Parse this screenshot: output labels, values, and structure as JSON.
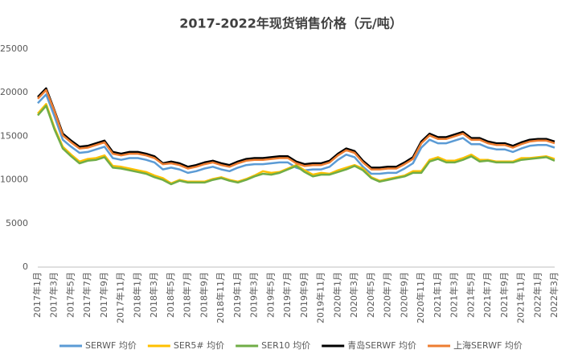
{
  "chart_data": {
    "type": "line",
    "title": "2017-2022年现货销售价格（元/吨）",
    "categories": [
      "2017年1月",
      null,
      "2017年3月",
      null,
      "2017年5月",
      null,
      "2017年7月",
      null,
      "2017年9月",
      null,
      "2017年11月",
      null,
      "2018年1月",
      null,
      "2018年3月",
      null,
      "2018年5月",
      null,
      "2018年7月",
      null,
      "2018年9月",
      null,
      "2018年11月",
      null,
      "2019年1月",
      null,
      "2019年3月",
      null,
      "2019年5月",
      null,
      "2019年7月",
      null,
      "2019年9月",
      null,
      "2019年11月",
      null,
      "2020年1月",
      null,
      "2020年3月",
      null,
      "2020年5月",
      null,
      "2020年7月",
      null,
      "2020年9月",
      null,
      "2020年11月",
      null,
      "2021年1月",
      null,
      "2021年3月",
      null,
      "2021年5月",
      null,
      "2021年7月",
      null,
      "2021年9月",
      null,
      "2021年11月",
      null,
      "2022年1月",
      null,
      "2022年3月"
    ],
    "series": [
      {
        "name": "SERWF 均价",
        "color": "#5b9bd5",
        "values": [
          18800,
          19800,
          17300,
          14600,
          13800,
          13100,
          13200,
          13500,
          13800,
          12500,
          12300,
          12500,
          12500,
          12300,
          12000,
          11200,
          11400,
          11200,
          10800,
          11000,
          11300,
          11500,
          11200,
          11000,
          11400,
          11700,
          11800,
          11800,
          11900,
          12000,
          12000,
          11400,
          11100,
          11200,
          11200,
          11500,
          12300,
          12900,
          12600,
          11500,
          10700,
          10700,
          10800,
          10800,
          11300,
          11900,
          13700,
          14600,
          14200,
          14200,
          14500,
          14800,
          14100,
          14100,
          13700,
          13500,
          13500,
          13200,
          13600,
          13900,
          14000,
          14000,
          13700
        ]
      },
      {
        "name": "SER5# 均价",
        "color": "#ffc000",
        "values": [
          17600,
          18700,
          16000,
          13800,
          12900,
          12100,
          12400,
          12500,
          12800,
          11600,
          11500,
          11300,
          11100,
          10900,
          10500,
          10200,
          9600,
          10000,
          9800,
          9800,
          9800,
          10100,
          10300,
          10000,
          9800,
          10100,
          10500,
          11000,
          10800,
          10900,
          11300,
          11700,
          11100,
          10600,
          10800,
          10700,
          11100,
          11400,
          11700,
          11300,
          10300,
          9900,
          10100,
          10300,
          10500,
          11000,
          11000,
          12300,
          12600,
          12200,
          12200,
          12500,
          12900,
          12300,
          12300,
          12100,
          12100,
          12100,
          12500,
          12500,
          12600,
          12700,
          12400
        ]
      },
      {
        "name": "SER10 均价",
        "color": "#70ad47",
        "values": [
          17400,
          18500,
          15800,
          13600,
          12700,
          11900,
          12200,
          12300,
          12600,
          11400,
          11300,
          11100,
          10900,
          10700,
          10300,
          10000,
          9500,
          9900,
          9700,
          9700,
          9700,
          10000,
          10200,
          9900,
          9700,
          10000,
          10400,
          10700,
          10600,
          10800,
          11200,
          11600,
          10900,
          10400,
          10600,
          10600,
          10900,
          11200,
          11600,
          11100,
          10200,
          9800,
          10000,
          10200,
          10400,
          10800,
          10800,
          12100,
          12400,
          12000,
          12000,
          12300,
          12700,
          12100,
          12200,
          12000,
          12000,
          12000,
          12300,
          12400,
          12500,
          12600,
          12200
        ]
      },
      {
        "name": "青岛SERWF 均价",
        "color": "#000000",
        "values": [
          19500,
          20500,
          18000,
          15300,
          14500,
          13800,
          13900,
          14200,
          14500,
          13200,
          13000,
          13200,
          13200,
          13000,
          12700,
          11900,
          12100,
          11900,
          11500,
          11700,
          12000,
          12200,
          11900,
          11700,
          12100,
          12400,
          12500,
          12500,
          12600,
          12700,
          12700,
          12100,
          11800,
          11900,
          11900,
          12200,
          13000,
          13600,
          13300,
          12200,
          11400,
          11400,
          11500,
          11500,
          12000,
          12600,
          14400,
          15300,
          14900,
          14900,
          15200,
          15500,
          14800,
          14800,
          14400,
          14200,
          14200,
          13900,
          14300,
          14600,
          14700,
          14700,
          14400
        ]
      },
      {
        "name": "上海SERWF 均价",
        "color": "#ed7d31",
        "values": [
          19300,
          20300,
          17900,
          15100,
          14300,
          13600,
          13700,
          14000,
          14300,
          13000,
          12800,
          13000,
          13000,
          12800,
          12500,
          11800,
          11900,
          11700,
          11300,
          11500,
          11800,
          12000,
          11700,
          11500,
          11900,
          12200,
          12300,
          12300,
          12400,
          12500,
          12500,
          11900,
          11600,
          11700,
          11700,
          12000,
          12800,
          13400,
          13100,
          12000,
          11200,
          11200,
          11300,
          11300,
          11800,
          12400,
          14200,
          15100,
          14700,
          14700,
          15000,
          15300,
          14600,
          14600,
          14200,
          14000,
          14000,
          13700,
          14100,
          14400,
          14500,
          14500,
          14200
        ]
      }
    ],
    "ylim": [
      0,
      25000
    ],
    "yticks": [
      0,
      5000,
      10000,
      15000,
      20000,
      25000
    ],
    "grid": false,
    "legend": "bottom"
  }
}
